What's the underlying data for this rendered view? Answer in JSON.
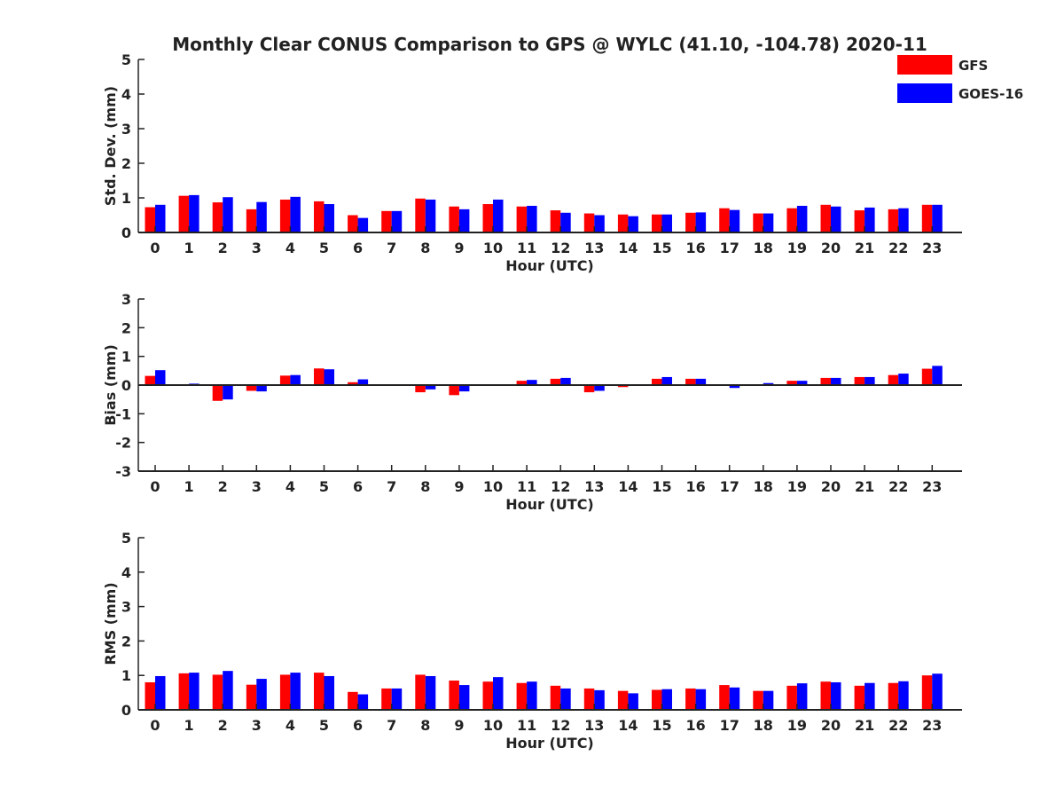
{
  "title": "Monthly Clear CONUS Comparison to GPS @ WYLC (41.10, -104.78) 2020-11",
  "legend": {
    "placement": "top-right",
    "entries": [
      {
        "label": "GFS",
        "color": "#ff0000"
      },
      {
        "label": "GOES-16",
        "color": "#0000ff"
      }
    ]
  },
  "chart_data": [
    {
      "type": "bar",
      "ylabel": "Std. Dev. (mm)",
      "xlabel": "Hour (UTC)",
      "ylim": [
        0,
        5
      ],
      "yticks": [
        0,
        1,
        2,
        3,
        4,
        5
      ],
      "categories": [
        "0",
        "1",
        "2",
        "3",
        "4",
        "5",
        "6",
        "7",
        "8",
        "9",
        "10",
        "11",
        "12",
        "13",
        "14",
        "15",
        "16",
        "17",
        "18",
        "19",
        "20",
        "21",
        "22",
        "23"
      ],
      "series": [
        {
          "name": "GFS",
          "color": "#ff0000",
          "values": [
            0.73,
            1.06,
            0.87,
            0.67,
            0.95,
            0.9,
            0.5,
            0.62,
            0.98,
            0.75,
            0.82,
            0.75,
            0.64,
            0.55,
            0.52,
            0.52,
            0.57,
            0.7,
            0.55,
            0.7,
            0.8,
            0.64,
            0.67,
            0.8
          ]
        },
        {
          "name": "GOES-16",
          "color": "#0000ff",
          "values": [
            0.8,
            1.08,
            1.02,
            0.88,
            1.03,
            0.82,
            0.42,
            0.62,
            0.95,
            0.67,
            0.95,
            0.77,
            0.57,
            0.5,
            0.47,
            0.52,
            0.58,
            0.65,
            0.55,
            0.77,
            0.75,
            0.72,
            0.7,
            0.8
          ]
        }
      ]
    },
    {
      "type": "bar",
      "ylabel": "Bias (mm)",
      "xlabel": "Hour (UTC)",
      "ylim": [
        -3,
        3
      ],
      "yticks": [
        -3,
        -2,
        -1,
        0,
        1,
        2,
        3
      ],
      "categories": [
        "0",
        "1",
        "2",
        "3",
        "4",
        "5",
        "6",
        "7",
        "8",
        "9",
        "10",
        "11",
        "12",
        "13",
        "14",
        "15",
        "16",
        "17",
        "18",
        "19",
        "20",
        "21",
        "22",
        "23"
      ],
      "series": [
        {
          "name": "GFS",
          "color": "#ff0000",
          "values": [
            0.32,
            -0.03,
            -0.55,
            -0.2,
            0.33,
            0.58,
            0.1,
            -0.03,
            -0.25,
            -0.35,
            -0.03,
            0.15,
            0.22,
            -0.25,
            -0.07,
            0.22,
            0.22,
            -0.03,
            0.03,
            0.15,
            0.25,
            0.28,
            0.35,
            0.57
          ]
        },
        {
          "name": "GOES-16",
          "color": "#0000ff",
          "values": [
            0.52,
            0.05,
            -0.5,
            -0.22,
            0.35,
            0.55,
            0.2,
            0.03,
            -0.15,
            -0.22,
            -0.03,
            0.18,
            0.25,
            -0.2,
            -0.03,
            0.28,
            0.22,
            -0.1,
            0.07,
            0.15,
            0.25,
            0.28,
            0.4,
            0.67
          ]
        }
      ]
    },
    {
      "type": "bar",
      "ylabel": "RMS (mm)",
      "xlabel": "Hour (UTC)",
      "ylim": [
        0,
        5
      ],
      "yticks": [
        0,
        1,
        2,
        3,
        4,
        5
      ],
      "categories": [
        "0",
        "1",
        "2",
        "3",
        "4",
        "5",
        "6",
        "7",
        "8",
        "9",
        "10",
        "11",
        "12",
        "13",
        "14",
        "15",
        "16",
        "17",
        "18",
        "19",
        "20",
        "21",
        "22",
        "23"
      ],
      "series": [
        {
          "name": "GFS",
          "color": "#ff0000",
          "values": [
            0.8,
            1.06,
            1.02,
            0.73,
            1.02,
            1.08,
            0.52,
            0.62,
            1.02,
            0.85,
            0.82,
            0.78,
            0.7,
            0.62,
            0.55,
            0.58,
            0.62,
            0.72,
            0.55,
            0.7,
            0.82,
            0.7,
            0.78,
            1.0
          ]
        },
        {
          "name": "GOES-16",
          "color": "#0000ff",
          "values": [
            0.98,
            1.08,
            1.13,
            0.9,
            1.08,
            0.98,
            0.45,
            0.62,
            0.98,
            0.72,
            0.95,
            0.82,
            0.62,
            0.57,
            0.48,
            0.6,
            0.6,
            0.65,
            0.55,
            0.77,
            0.8,
            0.78,
            0.83,
            1.05
          ]
        }
      ]
    }
  ]
}
